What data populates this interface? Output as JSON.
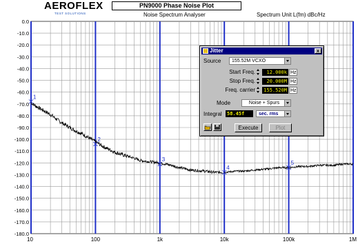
{
  "header": {
    "logo_text": "AEROFLEX",
    "logo_subtext": "TEST SOLUTIONS",
    "title": "PN9000 Phase Noise Plot",
    "subtitle": "Noise Spectrum Analyser",
    "unit_label": "Spectrum Unit L(fm) dBc/Hz"
  },
  "colors": {
    "trace": "#000000",
    "decade_lines": "#2030c8",
    "minor_grid": "#9a9a9a",
    "marker_text": "#2030c8",
    "dialog_title_bg": "#000080",
    "readout_text": "#f0f000"
  },
  "chart_data": {
    "type": "line",
    "title": "PN9000 Phase Noise Plot",
    "xscale": "log",
    "xlim": [
      10,
      1000000
    ],
    "ylim": [
      -180,
      0
    ],
    "x_tick_labels": [
      "10",
      "100",
      "1k",
      "10k",
      "100k",
      "1M"
    ],
    "x_tick_values": [
      10,
      100,
      1000,
      10000,
      100000,
      1000000
    ],
    "y_tick_labels": [
      "0.0",
      "-10.0",
      "-20.0",
      "-30.0",
      "-40.0",
      "-50.0",
      "-60.0",
      "-70.0",
      "-80.0",
      "-90.0",
      "-100.0",
      "-110.0",
      "-120.0",
      "-130.0",
      "-140.0",
      "-150.0",
      "-160.0",
      "-170.0",
      "-180.0"
    ],
    "y_tick_values": [
      0,
      -10,
      -20,
      -30,
      -40,
      -50,
      -60,
      -70,
      -80,
      -90,
      -100,
      -110,
      -120,
      -130,
      -140,
      -150,
      -160,
      -170,
      -180
    ],
    "grid": true,
    "series": [
      {
        "x": [
          10,
          12,
          15,
          20,
          25,
          30,
          40,
          50,
          60,
          80,
          100,
          130,
          170,
          200,
          300,
          400,
          500,
          700,
          1000,
          1500,
          2000,
          3000,
          5000,
          7000,
          10000,
          15000,
          20000,
          30000,
          50000,
          70000,
          100000,
          150000,
          200000,
          300000,
          500000,
          700000,
          1000000
        ],
        "y": [
          -69,
          -72,
          -75,
          -79,
          -83,
          -86,
          -90,
          -93,
          -95,
          -99,
          -102,
          -106,
          -109,
          -111,
          -114,
          -116,
          -118,
          -119,
          -120,
          -122,
          -124,
          -126,
          -127,
          -128,
          -128,
          -127,
          -127,
          -126,
          -125,
          -124,
          -124,
          -123,
          -123,
          -122,
          -122,
          -121,
          -121
        ]
      }
    ],
    "markers": [
      {
        "label": "1",
        "x": 10,
        "y": -68
      },
      {
        "label": "2",
        "x": 100,
        "y": -104
      },
      {
        "label": "3",
        "x": 1000,
        "y": -121
      },
      {
        "label": "4",
        "x": 10000,
        "y": -128
      },
      {
        "label": "5",
        "x": 100000,
        "y": -124
      }
    ]
  },
  "dialog": {
    "title": "Jitter",
    "source_label": "Source",
    "source_value": "155.52M VCXO",
    "start_label": "Start Freq.",
    "start_value": "12.000k",
    "start_unit": "Hz",
    "stop_label": "Stop Freq.",
    "stop_value": "20.000M",
    "stop_unit": "Hz",
    "carrier_label": "Freq. carrier",
    "carrier_value": "155.520M",
    "carrier_unit": "Hz",
    "mode_label": "Mode",
    "mode_value": "Noise + Spurs",
    "integral_label": "Integral",
    "integral_value": "58.45f",
    "integral_unit": "sec. rms",
    "execute_label": "Execute",
    "plot_label": "Plot",
    "close_label": "x"
  }
}
